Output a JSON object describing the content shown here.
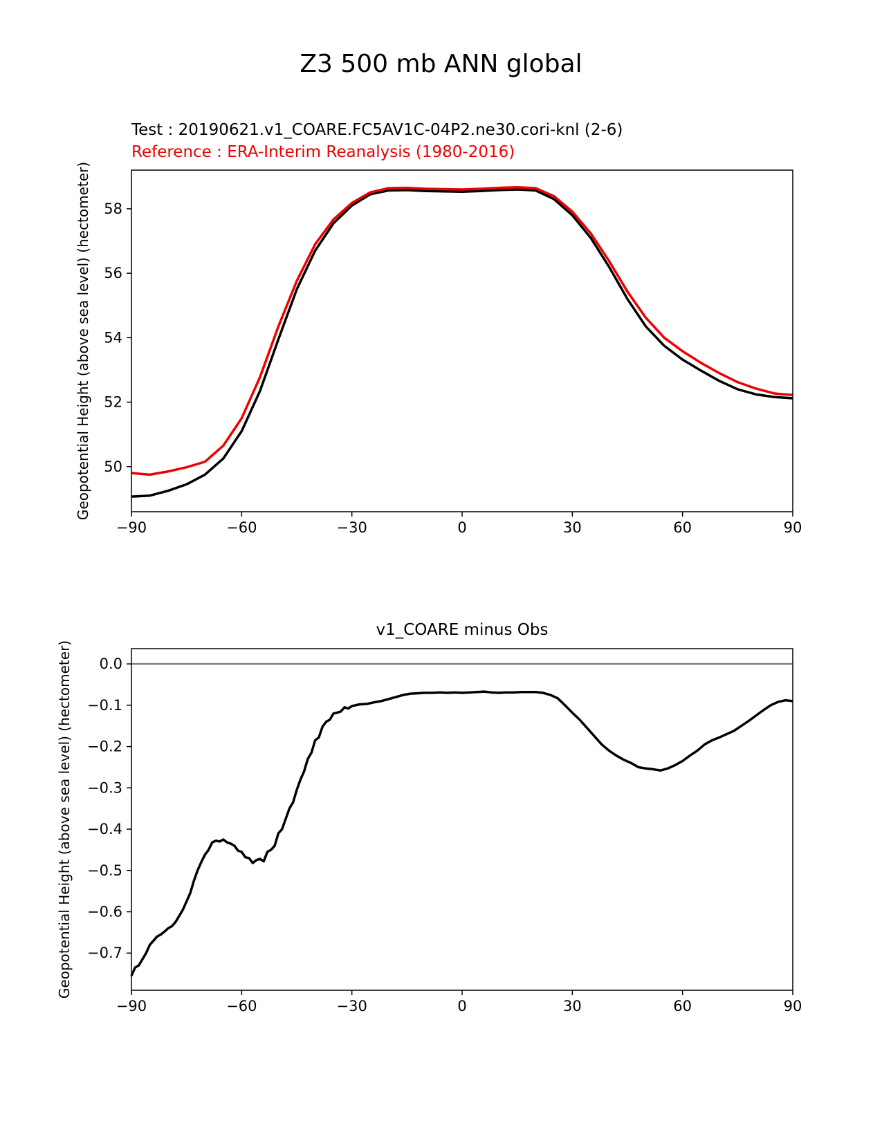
{
  "figure": {
    "title": "Z3 500 mb ANN global",
    "test_label": "Test : 20190621.v1_COARE.FC5AV1C-04P2.ne30.cori-knl (2-6)",
    "reference_label": "Reference : ERA-Interim Reanalysis (1980-2016)"
  },
  "colors": {
    "test": "#000000",
    "reference": "#ee0000",
    "zero_line": "#808080"
  },
  "chart_data": [
    {
      "type": "line",
      "title": "",
      "xlabel": "",
      "ylabel": "Geopotential Height (above sea level) (hectometer)",
      "xlim": [
        -90,
        90
      ],
      "ylim": [
        48.6,
        59.2
      ],
      "xticks": [
        -90,
        -60,
        -30,
        0,
        30,
        60,
        90
      ],
      "xtick_labels": [
        "−90",
        "−60",
        "−30",
        "0",
        "30",
        "60",
        "90"
      ],
      "yticks": [
        50,
        52,
        54,
        56,
        58
      ],
      "ytick_labels": [
        "50",
        "52",
        "54",
        "56",
        "58"
      ],
      "series": [
        {
          "name": "Test",
          "color": "#000000",
          "x": [
            -90,
            -85,
            -80,
            -75,
            -70,
            -65,
            -60,
            -55,
            -50,
            -45,
            -40,
            -35,
            -30,
            -25,
            -20,
            -15,
            -10,
            -5,
            0,
            5,
            10,
            15,
            20,
            25,
            30,
            35,
            40,
            45,
            50,
            55,
            60,
            65,
            70,
            75,
            80,
            85,
            90
          ],
          "y": [
            49.07,
            49.1,
            49.25,
            49.45,
            49.75,
            50.25,
            51.1,
            52.35,
            53.95,
            55.5,
            56.7,
            57.55,
            58.1,
            58.45,
            58.57,
            58.58,
            58.55,
            58.54,
            58.53,
            58.55,
            58.58,
            58.6,
            58.57,
            58.3,
            57.8,
            57.1,
            56.2,
            55.2,
            54.35,
            53.75,
            53.32,
            52.98,
            52.66,
            52.4,
            52.24,
            52.16,
            52.12
          ]
        },
        {
          "name": "Reference",
          "color": "#ee0000",
          "x": [
            -90,
            -85,
            -80,
            -75,
            -70,
            -65,
            -60,
            -55,
            -50,
            -45,
            -40,
            -35,
            -30,
            -25,
            -20,
            -15,
            -10,
            -5,
            0,
            5,
            10,
            15,
            20,
            25,
            30,
            35,
            40,
            45,
            50,
            55,
            60,
            65,
            70,
            75,
            80,
            85,
            90
          ],
          "y": [
            49.8,
            49.75,
            49.85,
            49.98,
            50.15,
            50.65,
            51.5,
            52.78,
            54.35,
            55.76,
            56.9,
            57.67,
            58.18,
            58.51,
            58.64,
            58.65,
            58.62,
            58.61,
            58.6,
            58.62,
            58.65,
            58.67,
            58.64,
            58.39,
            57.91,
            57.24,
            56.38,
            55.43,
            54.62,
            54.0,
            53.58,
            53.22,
            52.9,
            52.62,
            52.42,
            52.27,
            52.22
          ]
        }
      ]
    },
    {
      "type": "line",
      "title": "v1_COARE minus Obs",
      "xlabel": "",
      "ylabel": "Geopotential Height (above sea level) (hectometer)",
      "xlim": [
        -90,
        90
      ],
      "ylim": [
        -0.79,
        0.037
      ],
      "xticks": [
        -90,
        -60,
        -30,
        0,
        30,
        60,
        90
      ],
      "xtick_labels": [
        "−90",
        "−60",
        "−30",
        "0",
        "30",
        "60",
        "90"
      ],
      "yticks": [
        0.0,
        -0.1,
        -0.2,
        -0.3,
        -0.4,
        -0.5,
        -0.6,
        -0.7
      ],
      "ytick_labels": [
        "0.0",
        "−0.1",
        "−0.2",
        "−0.3",
        "−0.4",
        "−0.5",
        "−0.6",
        "−0.7"
      ],
      "zero_line": 0,
      "series": [
        {
          "name": "Test minus Reference",
          "color": "#000000",
          "x": [
            -90,
            -89,
            -88,
            -87,
            -86,
            -85,
            -84,
            -83,
            -82,
            -81,
            -80,
            -79,
            -78,
            -77,
            -76,
            -75,
            -74,
            -73,
            -72,
            -71,
            -70,
            -69,
            -68,
            -67,
            -66,
            -65,
            -64,
            -63,
            -62,
            -61,
            -60,
            -59,
            -58,
            -57,
            -56,
            -55,
            -54,
            -53,
            -52,
            -51,
            -50,
            -49,
            -48,
            -47,
            -46,
            -45,
            -44,
            -43,
            -42,
            -41,
            -40,
            -39,
            -38,
            -37,
            -36,
            -35,
            -34,
            -33,
            -32,
            -31,
            -30,
            -28,
            -26,
            -24,
            -22,
            -20,
            -18,
            -16,
            -14,
            -12,
            -10,
            -8,
            -6,
            -4,
            -2,
            0,
            2,
            4,
            6,
            8,
            10,
            12,
            14,
            16,
            18,
            20,
            22,
            24,
            26,
            28,
            30,
            32,
            34,
            36,
            38,
            40,
            42,
            44,
            46,
            48,
            50,
            52,
            54,
            56,
            58,
            60,
            62,
            64,
            66,
            68,
            70,
            72,
            74,
            76,
            78,
            80,
            82,
            84,
            86,
            88,
            90
          ],
          "y": [
            -0.755,
            -0.735,
            -0.73,
            -0.715,
            -0.7,
            -0.68,
            -0.67,
            -0.66,
            -0.655,
            -0.648,
            -0.64,
            -0.635,
            -0.625,
            -0.61,
            -0.595,
            -0.575,
            -0.555,
            -0.525,
            -0.5,
            -0.48,
            -0.462,
            -0.45,
            -0.432,
            -0.428,
            -0.43,
            -0.425,
            -0.432,
            -0.435,
            -0.44,
            -0.452,
            -0.455,
            -0.468,
            -0.47,
            -0.482,
            -0.475,
            -0.472,
            -0.478,
            -0.455,
            -0.45,
            -0.44,
            -0.41,
            -0.4,
            -0.375,
            -0.35,
            -0.335,
            -0.305,
            -0.28,
            -0.26,
            -0.23,
            -0.215,
            -0.185,
            -0.178,
            -0.152,
            -0.14,
            -0.135,
            -0.12,
            -0.118,
            -0.115,
            -0.105,
            -0.108,
            -0.102,
            -0.098,
            -0.097,
            -0.093,
            -0.09,
            -0.085,
            -0.08,
            -0.075,
            -0.072,
            -0.071,
            -0.07,
            -0.07,
            -0.069,
            -0.07,
            -0.069,
            -0.07,
            -0.069,
            -0.068,
            -0.067,
            -0.069,
            -0.07,
            -0.069,
            -0.069,
            -0.068,
            -0.068,
            -0.068,
            -0.07,
            -0.075,
            -0.083,
            -0.1,
            -0.118,
            -0.135,
            -0.155,
            -0.175,
            -0.195,
            -0.21,
            -0.222,
            -0.232,
            -0.24,
            -0.25,
            -0.253,
            -0.255,
            -0.258,
            -0.253,
            -0.245,
            -0.235,
            -0.222,
            -0.21,
            -0.195,
            -0.185,
            -0.178,
            -0.17,
            -0.162,
            -0.15,
            -0.138,
            -0.125,
            -0.112,
            -0.1,
            -0.092,
            -0.088,
            -0.09
          ]
        }
      ]
    }
  ]
}
